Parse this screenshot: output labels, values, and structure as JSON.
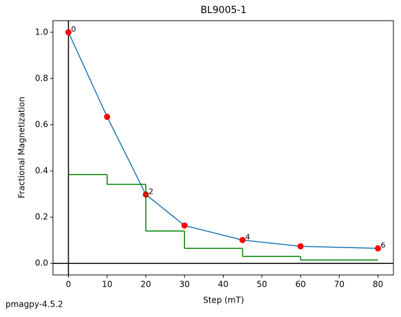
{
  "chart_data": {
    "type": "line",
    "title": "BL9005-1",
    "x_label": "Step (mT)",
    "y_label": "Fractional Magnetization",
    "footer": "pmagpy-4.5.2",
    "x": [
      0,
      10,
      20,
      30,
      45,
      60,
      80
    ],
    "series": [
      {
        "color": "#1f77b4",
        "marker_color": "#ff0000",
        "values": [
          1.0,
          0.634,
          0.298,
          0.164,
          0.101,
          0.074,
          0.065
        ],
        "point_labels": [
          "0",
          null,
          "2",
          null,
          "4",
          null,
          "6"
        ]
      },
      {
        "color": "#008000",
        "step": "post",
        "values": [
          0.384,
          0.342,
          0.14,
          0.065,
          0.03,
          0.015,
          0.015
        ]
      }
    ],
    "hlines": [
      0
    ],
    "vlines": [
      0
    ],
    "xlim": [
      -4,
      84
    ],
    "ylim": [
      -0.05,
      1.05
    ],
    "xticks": [
      0,
      10,
      20,
      30,
      40,
      50,
      60,
      70,
      80
    ],
    "yticks": [
      {
        "value": 0,
        "label": "0.0"
      },
      0.2,
      0.4,
      0.6,
      0.8,
      {
        "value": 1,
        "label": "1.0"
      }
    ]
  }
}
